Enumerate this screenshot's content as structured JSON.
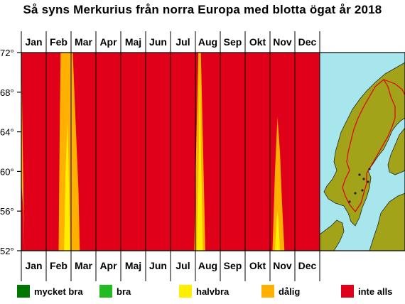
{
  "title": "Så syns Merkurius från norra Europa med blotta ögat år 2018",
  "colors": {
    "inte_alls": "#e0001a",
    "dalig": "#ffb000",
    "halvbra": "#ffee00",
    "bra": "#22bb22",
    "mycket_bra": "#007700",
    "sea": "#a8e6ee",
    "land": "#a3a31a",
    "border": "#dd0000"
  },
  "legend": [
    {
      "label": "mycket bra",
      "color": "#007700"
    },
    {
      "label": "bra",
      "color": "#22bb22"
    },
    {
      "label": "halvbra",
      "color": "#ffee00"
    },
    {
      "label": "dålig",
      "color": "#ffb000"
    },
    {
      "label": "inte alls",
      "color": "#e0001a"
    }
  ],
  "chart_data": {
    "type": "heatmap",
    "title": "Så syns Merkurius från norra Europa med blotta ögat år 2018",
    "x_months": [
      "Jan",
      "Feb",
      "Mar",
      "Apr",
      "Maj",
      "Jun",
      "Jul",
      "Aug",
      "Sep",
      "Okt",
      "Nov",
      "Dec"
    ],
    "y_ticks": [
      "52°",
      "56°",
      "60°",
      "64°",
      "68°",
      "72°"
    ],
    "y_range": [
      52,
      72
    ],
    "x_range": [
      1,
      12
    ],
    "background_category": "inte alls",
    "visibility_windows": [
      {
        "category": "dålig",
        "shape": [
          [
            1,
            72
          ],
          [
            1,
            59
          ],
          [
            1.08,
            56
          ],
          [
            1.12,
            52
          ]
        ]
      },
      {
        "category": "dålig",
        "shape": [
          [
            2.5,
            52
          ],
          [
            2.55,
            66
          ],
          [
            2.58,
            72
          ],
          [
            3.07,
            72
          ],
          [
            3.2,
            64
          ],
          [
            3.3,
            58
          ],
          [
            3.35,
            52
          ]
        ]
      },
      {
        "category": "halvbra",
        "shape": [
          [
            2.72,
            52
          ],
          [
            2.78,
            60
          ],
          [
            2.85,
            65
          ],
          [
            2.9,
            61
          ],
          [
            2.96,
            52
          ]
        ]
      },
      {
        "category": "dålig",
        "shape": [
          [
            7.95,
            52
          ],
          [
            8.03,
            62
          ],
          [
            8.12,
            72
          ],
          [
            8.22,
            72
          ],
          [
            8.31,
            62
          ],
          [
            8.4,
            52
          ]
        ]
      },
      {
        "category": "halvbra",
        "shape": [
          [
            8.05,
            52
          ],
          [
            8.14,
            62
          ],
          [
            8.18,
            72
          ],
          [
            8.22,
            62
          ],
          [
            8.3,
            52
          ]
        ]
      },
      {
        "category": "dålig",
        "shape": [
          [
            11.1,
            52
          ],
          [
            11.2,
            60
          ],
          [
            11.3,
            65.5
          ],
          [
            11.4,
            62
          ],
          [
            11.48,
            57
          ],
          [
            11.58,
            52
          ]
        ]
      },
      {
        "category": "halvbra",
        "shape": [
          [
            11.2,
            52
          ],
          [
            11.26,
            55
          ],
          [
            11.3,
            56
          ],
          [
            11.34,
            55
          ],
          [
            11.4,
            52
          ]
        ]
      }
    ]
  }
}
